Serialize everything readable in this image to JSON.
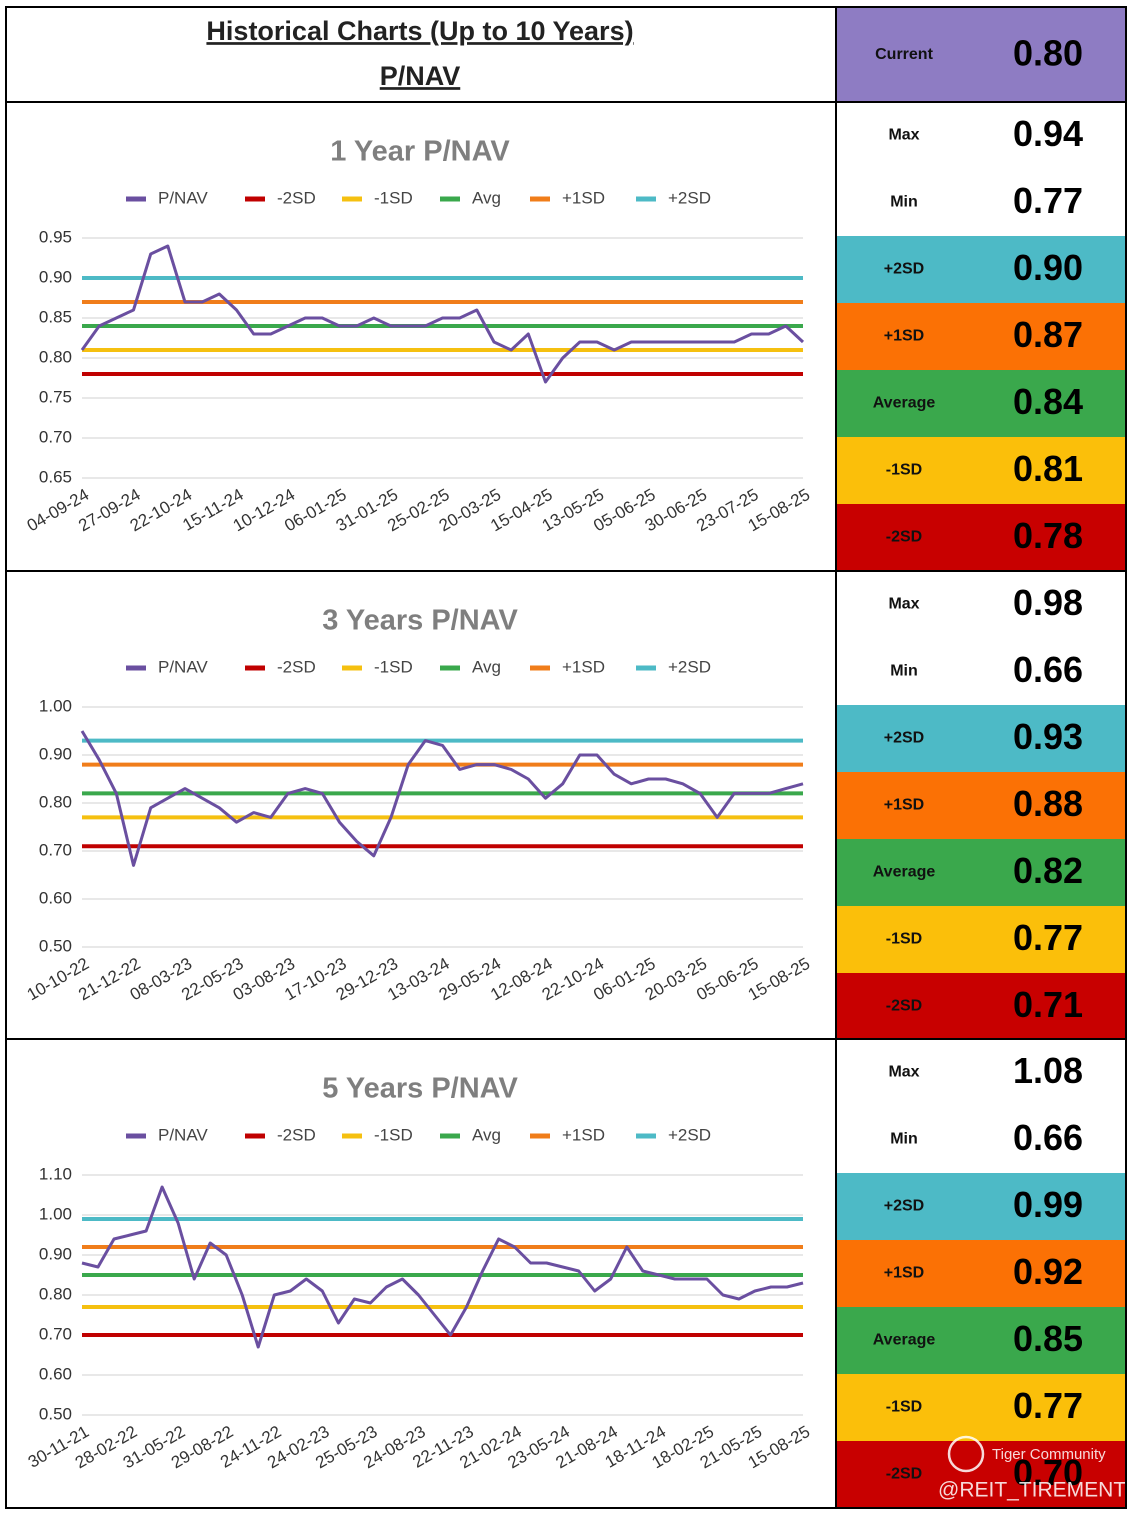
{
  "header": {
    "title": "Historical Charts (Up to 10 Years)",
    "subtitle": "P/NAV"
  },
  "current": {
    "label": "Current",
    "value": "0.80",
    "color": "#8e7cc3"
  },
  "watermark": [
    "Tiger Community",
    "@REIT_TIREMENT"
  ],
  "stats_panels": [
    [
      {
        "label": "Max",
        "value": "0.94",
        "color": "#ffffff"
      },
      {
        "label": "Min",
        "value": "0.77",
        "color": "#ffffff"
      },
      {
        "label": "+2SD",
        "value": "0.90",
        "color": "#4dbac6"
      },
      {
        "label": "+1SD",
        "value": "0.87",
        "color": "#fb7105"
      },
      {
        "label": "Average",
        "value": "0.84",
        "color": "#3aa84c"
      },
      {
        "label": "-1SD",
        "value": "0.81",
        "color": "#fbbf0a"
      },
      {
        "label": "-2SD",
        "value": "0.78",
        "color": "#c80000"
      }
    ],
    [
      {
        "label": "Max",
        "value": "0.98",
        "color": "#ffffff"
      },
      {
        "label": "Min",
        "value": "0.66",
        "color": "#ffffff"
      },
      {
        "label": "+2SD",
        "value": "0.93",
        "color": "#4dbac6"
      },
      {
        "label": "+1SD",
        "value": "0.88",
        "color": "#fb7105"
      },
      {
        "label": "Average",
        "value": "0.82",
        "color": "#3aa84c"
      },
      {
        "label": "-1SD",
        "value": "0.77",
        "color": "#fbbf0a"
      },
      {
        "label": "-2SD",
        "value": "0.71",
        "color": "#c80000"
      }
    ],
    [
      {
        "label": "Max",
        "value": "1.08",
        "color": "#ffffff"
      },
      {
        "label": "Min",
        "value": "0.66",
        "color": "#ffffff"
      },
      {
        "label": "+2SD",
        "value": "0.99",
        "color": "#4dbac6"
      },
      {
        "label": "+1SD",
        "value": "0.92",
        "color": "#fb7105"
      },
      {
        "label": "Average",
        "value": "0.85",
        "color": "#3aa84c"
      },
      {
        "label": "-1SD",
        "value": "0.77",
        "color": "#fbbf0a"
      },
      {
        "label": "-2SD",
        "value": "0.70",
        "color": "#c80000"
      }
    ]
  ],
  "chart_data": [
    {
      "type": "line",
      "title": "1 Year P/NAV",
      "grid": true,
      "ylim": [
        0.65,
        0.95
      ],
      "yticks": [
        0.95,
        {
          "value": 0.9,
          "label": "0.90"
        },
        0.85,
        {
          "value": 0.8,
          "label": "0.80"
        },
        0.75,
        {
          "value": 0.7,
          "label": "0.70"
        },
        0.65
      ],
      "categories": [
        "04-09-24",
        null,
        null,
        "27-09-24",
        null,
        null,
        "22-10-24",
        null,
        null,
        "15-11-24",
        null,
        null,
        "10-12-24",
        null,
        null,
        "06-01-25",
        null,
        null,
        "31-01-25",
        null,
        null,
        "25-02-25",
        null,
        null,
        "20-03-25",
        null,
        null,
        "15-04-25",
        null,
        null,
        "13-05-25",
        null,
        null,
        "05-06-25",
        null,
        null,
        "30-06-25",
        null,
        null,
        "23-07-25",
        null,
        null,
        "15-08-25"
      ],
      "series": [
        {
          "name": "P/NAV",
          "color": "#6a4fa0",
          "values": [
            0.81,
            0.84,
            0.85,
            0.86,
            0.93,
            0.94,
            0.87,
            0.87,
            0.88,
            0.86,
            0.83,
            0.83,
            0.84,
            0.85,
            0.85,
            0.84,
            0.84,
            0.85,
            0.84,
            0.84,
            0.84,
            0.85,
            0.85,
            0.86,
            0.82,
            0.81,
            0.83,
            0.77,
            0.8,
            0.82,
            0.82,
            0.81,
            0.82,
            0.82,
            0.82,
            0.82,
            0.82,
            0.82,
            0.82,
            0.83,
            0.83,
            0.84,
            0.82
          ]
        },
        {
          "name": "-2SD",
          "color": "#c00000",
          "value": 0.78
        },
        {
          "name": "-1SD",
          "color": "#f5c010",
          "value": 0.81
        },
        {
          "name": "Avg",
          "color": "#3aa84c",
          "value": 0.84
        },
        {
          "name": "+1SD",
          "color": "#f07d1a",
          "value": 0.87
        },
        {
          "name": "+2SD",
          "color": "#4dbac6",
          "value": 0.9
        }
      ]
    },
    {
      "type": "line",
      "title": "3 Years P/NAV",
      "grid": true,
      "ylim": [
        0.5,
        1.0
      ],
      "yticks": [
        {
          "value": 1.0,
          "label": "1.00"
        },
        {
          "value": 0.9,
          "label": "0.90"
        },
        {
          "value": 0.8,
          "label": "0.80"
        },
        {
          "value": 0.7,
          "label": "0.70"
        },
        {
          "value": 0.6,
          "label": "0.60"
        },
        {
          "value": 0.5,
          "label": "0.50"
        }
      ],
      "categories": [
        "10-10-22",
        null,
        null,
        "21-12-22",
        null,
        null,
        "08-03-23",
        null,
        null,
        "22-05-23",
        null,
        null,
        "03-08-23",
        null,
        null,
        "17-10-23",
        null,
        null,
        "29-12-23",
        null,
        null,
        "13-03-24",
        null,
        null,
        "29-05-24",
        null,
        null,
        "12-08-24",
        null,
        null,
        "22-10-24",
        null,
        null,
        "06-01-25",
        null,
        null,
        "20-03-25",
        null,
        null,
        "05-06-25",
        null,
        null,
        "15-08-25"
      ],
      "series": [
        {
          "name": "P/NAV",
          "color": "#6a4fa0",
          "values": [
            0.95,
            0.89,
            0.82,
            0.67,
            0.79,
            0.81,
            0.83,
            0.81,
            0.79,
            0.76,
            0.78,
            0.77,
            0.82,
            0.83,
            0.82,
            0.76,
            0.72,
            0.69,
            0.77,
            0.88,
            0.93,
            0.92,
            0.87,
            0.88,
            0.88,
            0.87,
            0.85,
            0.81,
            0.84,
            0.9,
            0.9,
            0.86,
            0.84,
            0.85,
            0.85,
            0.84,
            0.82,
            0.77,
            0.82,
            0.82,
            0.82,
            0.83,
            0.84
          ]
        },
        {
          "name": "-2SD",
          "color": "#c00000",
          "value": 0.71
        },
        {
          "name": "-1SD",
          "color": "#f5c010",
          "value": 0.77
        },
        {
          "name": "Avg",
          "color": "#3aa84c",
          "value": 0.82
        },
        {
          "name": "+1SD",
          "color": "#f07d1a",
          "value": 0.88
        },
        {
          "name": "+2SD",
          "color": "#4dbac6",
          "value": 0.93
        }
      ]
    },
    {
      "type": "line",
      "title": "5 Years P/NAV",
      "grid": true,
      "ylim": [
        0.5,
        1.1
      ],
      "yticks": [
        {
          "value": 1.1,
          "label": "1.10"
        },
        {
          "value": 1.0,
          "label": "1.00"
        },
        {
          "value": 0.9,
          "label": "0.90"
        },
        {
          "value": 0.8,
          "label": "0.80"
        },
        {
          "value": 0.7,
          "label": "0.70"
        },
        {
          "value": 0.6,
          "label": "0.60"
        },
        {
          "value": 0.5,
          "label": "0.50"
        }
      ],
      "categories": [
        "30-11-21",
        null,
        null,
        "28-02-22",
        null,
        null,
        "31-05-22",
        null,
        null,
        "29-08-22",
        null,
        null,
        "24-11-22",
        null,
        null,
        "24-02-23",
        null,
        null,
        "25-05-23",
        null,
        null,
        "24-08-23",
        null,
        null,
        "22-11-23",
        null,
        null,
        "21-02-24",
        null,
        null,
        "23-05-24",
        null,
        null,
        "21-08-24",
        null,
        null,
        "18-11-24",
        null,
        null,
        "18-02-25",
        null,
        null,
        "21-05-25",
        null,
        null,
        "15-08-25"
      ],
      "series": [
        {
          "name": "P/NAV",
          "color": "#6a4fa0",
          "values": [
            0.88,
            0.87,
            0.94,
            0.95,
            0.96,
            1.07,
            0.98,
            0.84,
            0.93,
            0.9,
            0.8,
            0.67,
            0.8,
            0.81,
            0.84,
            0.81,
            0.73,
            0.79,
            0.78,
            0.82,
            0.84,
            0.8,
            0.75,
            0.7,
            0.77,
            0.86,
            0.94,
            0.92,
            0.88,
            0.88,
            0.87,
            0.86,
            0.81,
            0.84,
            0.92,
            0.86,
            0.85,
            0.84,
            0.84,
            0.84,
            0.8,
            0.79,
            0.81,
            0.82,
            0.82,
            0.83
          ]
        },
        {
          "name": "-2SD",
          "color": "#c00000",
          "value": 0.7
        },
        {
          "name": "-1SD",
          "color": "#f5c010",
          "value": 0.77
        },
        {
          "name": "Avg",
          "color": "#3aa84c",
          "value": 0.85
        },
        {
          "name": "+1SD",
          "color": "#f07d1a",
          "value": 0.92
        },
        {
          "name": "+2SD",
          "color": "#4dbac6",
          "value": 0.99
        }
      ]
    }
  ]
}
